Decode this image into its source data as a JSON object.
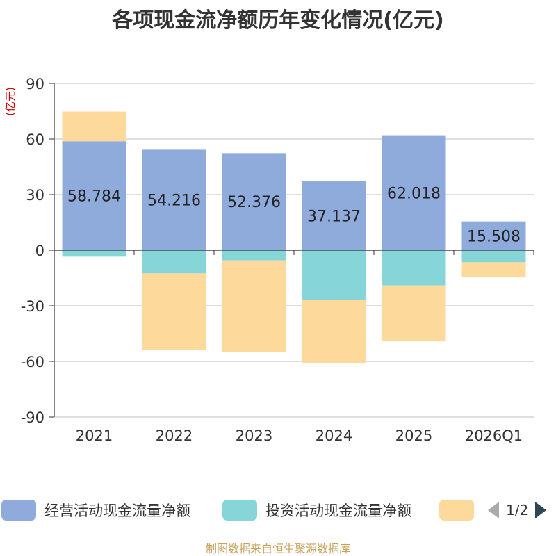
{
  "title": "各项现金流净额历年变化情况(亿元)",
  "source": "制图数据来自恒生聚源数据库",
  "legend": {
    "items": [
      {
        "label": "经营活动现金流量净额",
        "color": "#8eabdb"
      },
      {
        "label": "投资活动现金流量净额",
        "color": "#86d5d8"
      },
      {
        "label": "",
        "color": "#fdd99b"
      }
    ],
    "page_text": "1/2"
  },
  "chart_data": {
    "type": "bar",
    "stacked": true,
    "categories": [
      "2021",
      "2022",
      "2023",
      "2024",
      "2025",
      "2026Q1"
    ],
    "ylabel": "(亿元)",
    "ylim": [
      -90,
      90
    ],
    "yticks": [
      90,
      60,
      30,
      0,
      -30,
      -60,
      -90
    ],
    "grid": true,
    "legend_position": "bottom",
    "series": [
      {
        "name": "经营活动现金流量净额",
        "color": "#8eabdb",
        "values": [
          58.784,
          54.216,
          52.376,
          37.137,
          62.018,
          15.508
        ],
        "labels": [
          "58.784",
          "54.216",
          "52.376",
          "37.137",
          "62.018",
          "15.508"
        ]
      },
      {
        "name": "投资活动现金流量净额",
        "color": "#86d5d8",
        "values": [
          -3.5,
          -12.5,
          -5.5,
          -27,
          -19,
          -6.5
        ]
      },
      {
        "color": "#fdd99b",
        "values": [
          16,
          -41.5,
          -49.5,
          -34,
          -30,
          -8
        ]
      }
    ]
  }
}
